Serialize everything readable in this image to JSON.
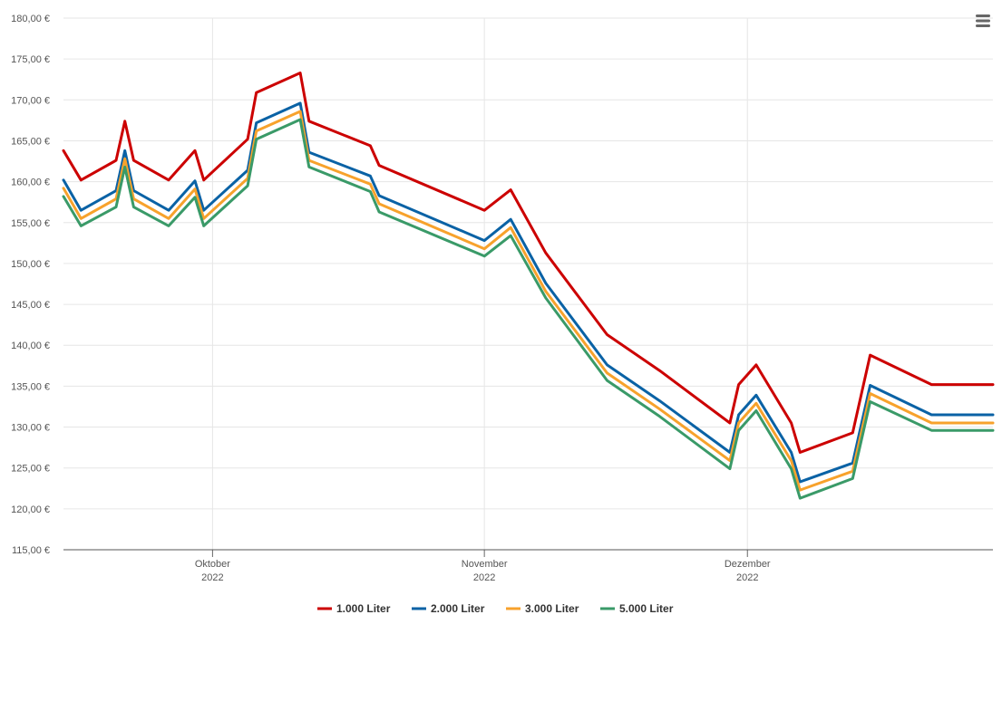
{
  "chart_data": {
    "type": "line",
    "title": "",
    "xlabel": "",
    "ylabel": "",
    "ylim": [
      115,
      180
    ],
    "y_ticks": [
      "115,00 €",
      "120,00 €",
      "125,00 €",
      "130,00 €",
      "135,00 €",
      "140,00 €",
      "145,00 €",
      "150,00 €",
      "155,00 €",
      "160,00 €",
      "165,00 €",
      "170,00 €",
      "175,00 €",
      "180,00 €"
    ],
    "y_tick_values": [
      115,
      120,
      125,
      130,
      135,
      140,
      145,
      150,
      155,
      160,
      165,
      170,
      175,
      180
    ],
    "x_range": [
      "2022-09-14",
      "2022-12-29"
    ],
    "x_ticks": [
      {
        "date": "2022-10-01",
        "month": "Oktober",
        "year": "2022"
      },
      {
        "date": "2022-11-01",
        "month": "November",
        "year": "2022"
      },
      {
        "date": "2022-12-01",
        "month": "Dezember",
        "year": "2022"
      }
    ],
    "grid": true,
    "legend_position": "bottom-center",
    "series": [
      {
        "name": "1.000 Liter",
        "color": "#cc0000",
        "x": [
          "2022-09-14",
          "2022-09-16",
          "2022-09-20",
          "2022-09-21",
          "2022-09-22",
          "2022-09-26",
          "2022-09-29",
          "2022-09-30",
          "2022-10-05",
          "2022-10-06",
          "2022-10-11",
          "2022-10-12",
          "2022-10-19",
          "2022-10-20",
          "2022-11-01",
          "2022-11-04",
          "2022-11-08",
          "2022-11-15",
          "2022-11-21",
          "2022-11-29",
          "2022-11-30",
          "2022-12-02",
          "2022-12-06",
          "2022-12-07",
          "2022-12-13",
          "2022-12-15",
          "2022-12-22",
          "2022-12-29"
        ],
        "values": [
          163.8,
          160.2,
          162.6,
          167.4,
          162.6,
          160.2,
          163.8,
          160.2,
          165.2,
          170.9,
          173.3,
          167.4,
          164.4,
          162.0,
          156.5,
          159.0,
          151.3,
          141.3,
          136.9,
          130.5,
          135.2,
          137.6,
          130.5,
          126.9,
          129.3,
          138.8,
          135.2,
          135.2
        ]
      },
      {
        "name": "2.000 Liter",
        "color": "#0a62a5",
        "x": [
          "2022-09-14",
          "2022-09-16",
          "2022-09-20",
          "2022-09-21",
          "2022-09-22",
          "2022-09-26",
          "2022-09-29",
          "2022-09-30",
          "2022-10-05",
          "2022-10-06",
          "2022-10-11",
          "2022-10-12",
          "2022-10-19",
          "2022-10-20",
          "2022-11-01",
          "2022-11-04",
          "2022-11-08",
          "2022-11-15",
          "2022-11-21",
          "2022-11-29",
          "2022-11-30",
          "2022-12-02",
          "2022-12-06",
          "2022-12-07",
          "2022-12-13",
          "2022-12-15",
          "2022-12-22",
          "2022-12-29"
        ],
        "values": [
          160.2,
          156.5,
          158.9,
          163.8,
          158.9,
          156.5,
          160.1,
          156.5,
          161.4,
          167.2,
          169.6,
          163.6,
          160.7,
          158.3,
          152.8,
          155.4,
          147.6,
          137.6,
          133.2,
          126.9,
          131.5,
          133.9,
          126.9,
          123.3,
          125.6,
          135.1,
          131.5,
          131.5
        ]
      },
      {
        "name": "3.000 Liter",
        "color": "#f7a22c",
        "x": [
          "2022-09-14",
          "2022-09-16",
          "2022-09-20",
          "2022-09-21",
          "2022-09-22",
          "2022-09-26",
          "2022-09-29",
          "2022-09-30",
          "2022-10-05",
          "2022-10-06",
          "2022-10-11",
          "2022-10-12",
          "2022-10-19",
          "2022-10-20",
          "2022-11-01",
          "2022-11-04",
          "2022-11-08",
          "2022-11-15",
          "2022-11-21",
          "2022-11-29",
          "2022-11-30",
          "2022-12-02",
          "2022-12-06",
          "2022-12-07",
          "2022-12-13",
          "2022-12-15",
          "2022-12-22",
          "2022-12-29"
        ],
        "values": [
          159.2,
          155.5,
          157.9,
          162.8,
          157.9,
          155.5,
          159.1,
          155.5,
          160.4,
          166.2,
          168.6,
          162.6,
          159.7,
          157.3,
          151.8,
          154.4,
          146.6,
          136.6,
          132.2,
          125.9,
          130.5,
          132.9,
          125.9,
          122.3,
          124.6,
          134.1,
          130.5,
          130.5
        ]
      },
      {
        "name": "5.000 Liter",
        "color": "#3a9a68",
        "x": [
          "2022-09-14",
          "2022-09-16",
          "2022-09-20",
          "2022-09-21",
          "2022-09-22",
          "2022-09-26",
          "2022-09-29",
          "2022-09-30",
          "2022-10-05",
          "2022-10-06",
          "2022-10-11",
          "2022-10-12",
          "2022-10-19",
          "2022-10-20",
          "2022-11-01",
          "2022-11-04",
          "2022-11-08",
          "2022-11-15",
          "2022-11-21",
          "2022-11-29",
          "2022-11-30",
          "2022-12-02",
          "2022-12-06",
          "2022-12-07",
          "2022-12-13",
          "2022-12-15",
          "2022-12-22",
          "2022-12-29"
        ],
        "values": [
          158.2,
          154.6,
          156.9,
          161.8,
          156.9,
          154.6,
          158.1,
          154.6,
          159.5,
          165.2,
          167.6,
          161.8,
          158.8,
          156.3,
          150.9,
          153.4,
          145.8,
          135.7,
          131.3,
          124.9,
          129.6,
          132.0,
          124.9,
          121.3,
          123.7,
          133.1,
          129.6,
          129.6
        ]
      }
    ]
  },
  "menu_icon": "hamburger-menu-icon"
}
